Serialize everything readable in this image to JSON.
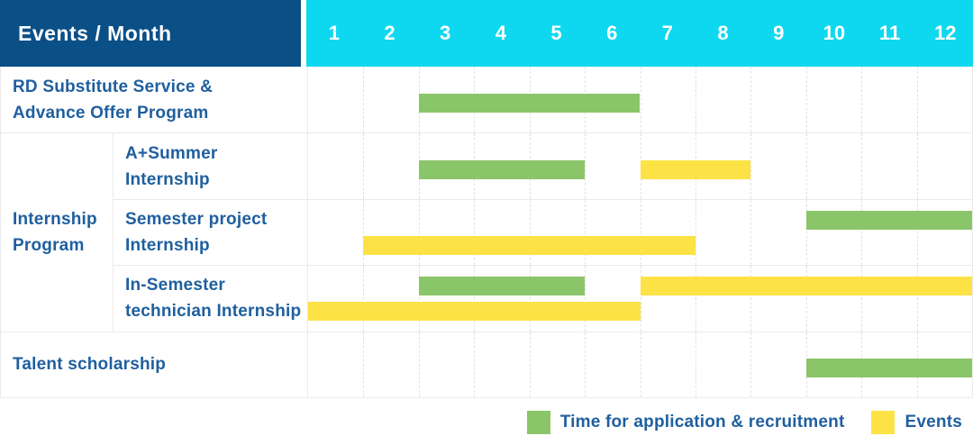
{
  "header": {
    "title": "Events / Month",
    "months": [
      "1",
      "2",
      "3",
      "4",
      "5",
      "6",
      "7",
      "8",
      "9",
      "10",
      "11",
      "12"
    ]
  },
  "colors": {
    "header_bg": "#0B4F87",
    "months_bg": "#0DD8EF",
    "text_blue": "#1F5F9F",
    "green": "#8BC56A",
    "yellow": "#FDE246",
    "grid": "#E2E2E2",
    "border": "#EAEAEA"
  },
  "legend": {
    "items": [
      {
        "key": "application",
        "label": "Time for application & recruitment"
      },
      {
        "key": "events",
        "label": "Events"
      }
    ]
  },
  "chart_data": {
    "type": "gantt",
    "title": "Events / Month",
    "x_axis": {
      "label": "Month",
      "categories": [
        1,
        2,
        3,
        4,
        5,
        6,
        7,
        8,
        9,
        10,
        11,
        12
      ]
    },
    "series": [
      {
        "key": "application",
        "name": "Time for application & recruitment",
        "color": "#8BC56A"
      },
      {
        "key": "events",
        "name": "Events",
        "color": "#FDE246"
      }
    ],
    "groups": [
      {
        "name": "Internship Program",
        "label_lines": [
          "Internship",
          "Program"
        ]
      }
    ],
    "rows": [
      {
        "id": "rd-substitute-service",
        "group": null,
        "label": "RD Substitute Service & Advance Offer Program",
        "label_lines": [
          "RD Substitute Service &",
          "Advance Offer Program"
        ],
        "bars": [
          {
            "series": "application",
            "start_month": 3,
            "end_month": 6,
            "lane": "center"
          }
        ]
      },
      {
        "id": "a-plus-summer-internship",
        "group": "Internship Program",
        "label": "A+Summer Internship",
        "label_lines": [
          "A+Summer",
          "Internship"
        ],
        "bars": [
          {
            "series": "application",
            "start_month": 3,
            "end_month": 5,
            "lane": "center"
          },
          {
            "series": "events",
            "start_month": 7,
            "end_month": 8,
            "lane": "center"
          }
        ]
      },
      {
        "id": "semester-project-internship",
        "group": "Internship Program",
        "label": "Semester project Internship",
        "label_lines": [
          "Semester project",
          "Internship"
        ],
        "bars": [
          {
            "series": "application",
            "start_month": 10,
            "end_month": 12,
            "lane": "top"
          },
          {
            "series": "events",
            "start_month": 2,
            "end_month": 7,
            "lane": "bottom"
          }
        ]
      },
      {
        "id": "in-semester-technician-internship",
        "group": "Internship Program",
        "label": "In-Semester technician Internship",
        "label_lines": [
          "In-Semester",
          "technician Internship"
        ],
        "bars": [
          {
            "series": "application",
            "start_month": 3,
            "end_month": 5,
            "lane": "top"
          },
          {
            "series": "events",
            "start_month": 7,
            "end_month": 12,
            "lane": "top"
          },
          {
            "series": "events",
            "start_month": 1,
            "end_month": 6,
            "lane": "bottom"
          }
        ]
      },
      {
        "id": "talent-scholarship",
        "group": null,
        "label": "Talent scholarship",
        "label_lines": [
          "Talent scholarship"
        ],
        "bars": [
          {
            "series": "application",
            "start_month": 10,
            "end_month": 12,
            "lane": "center"
          }
        ]
      }
    ]
  }
}
